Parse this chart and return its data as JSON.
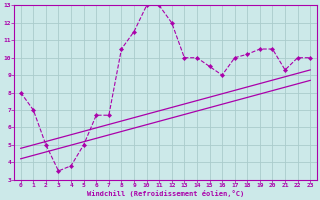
{
  "xlabel": "Windchill (Refroidissement éolien,°C)",
  "background_color": "#cce9e9",
  "line_color": "#aa00aa",
  "grid_color": "#aacccc",
  "xlim": [
    -0.5,
    23.5
  ],
  "ylim": [
    3,
    13
  ],
  "xticks": [
    0,
    1,
    2,
    3,
    4,
    5,
    6,
    7,
    8,
    9,
    10,
    11,
    12,
    13,
    14,
    15,
    16,
    17,
    18,
    19,
    20,
    21,
    22,
    23
  ],
  "yticks": [
    3,
    4,
    5,
    6,
    7,
    8,
    9,
    10,
    11,
    12,
    13
  ],
  "series1_x": [
    0,
    1,
    2,
    3,
    4,
    5,
    6,
    7,
    8,
    9,
    10,
    11,
    12,
    13,
    14,
    15,
    16,
    17,
    18,
    19,
    20,
    21,
    22,
    23
  ],
  "series1_y": [
    8.0,
    7.0,
    5.0,
    3.5,
    3.8,
    5.0,
    6.7,
    6.7,
    10.5,
    11.5,
    13.0,
    13.0,
    12.0,
    10.0,
    10.0,
    9.5,
    9.0,
    10.0,
    10.2,
    10.5,
    10.5,
    9.3,
    10.0,
    10.0
  ],
  "series2_x": [
    0,
    23
  ],
  "series2_y": [
    4.8,
    9.3
  ],
  "series3_x": [
    0,
    23
  ],
  "series3_y": [
    4.2,
    8.7
  ]
}
